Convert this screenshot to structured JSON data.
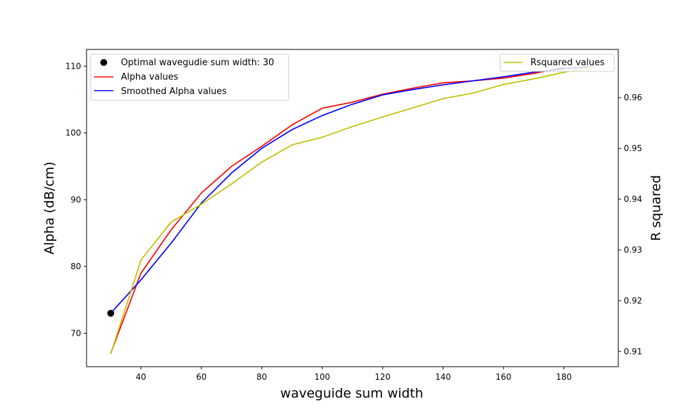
{
  "chart_data": {
    "type": "line",
    "xlabel": "waveguide sum width",
    "ylabel_left": "Alpha (dB/cm)",
    "ylabel_right": "R squared",
    "xlim": [
      22,
      198
    ],
    "ylim_left": [
      65,
      112.5
    ],
    "ylim_right": [
      0.907,
      0.9695
    ],
    "x_ticks": [
      40,
      60,
      80,
      100,
      120,
      140,
      160,
      180
    ],
    "y_left_ticks": [
      70,
      80,
      90,
      100,
      110
    ],
    "y_right_ticks": [
      0.91,
      0.92,
      0.93,
      0.94,
      0.95,
      0.96
    ],
    "y_right_tick_labels": [
      "0.91",
      "0.92",
      "0.93",
      "0.94",
      "0.95",
      "0.96"
    ],
    "grid": false,
    "series": [
      {
        "name": "Alpha values",
        "axis": "left",
        "color": "#ff0000",
        "x": [
          30,
          40,
          50,
          60,
          70,
          80,
          90,
          100,
          110,
          120,
          130,
          140,
          150,
          160,
          170,
          180
        ],
        "values": [
          67,
          79,
          85.5,
          91,
          95,
          98,
          101.2,
          103.7,
          104.6,
          105.8,
          106.7,
          107.5,
          107.8,
          108.2,
          108.9,
          109.8
        ]
      },
      {
        "name": "Smoothed Alpha values",
        "axis": "left",
        "color": "#0000ff",
        "x": [
          30,
          40,
          50,
          60,
          70,
          80,
          90,
          100,
          110,
          120,
          130,
          140,
          150,
          160,
          170,
          180,
          190
        ],
        "values": [
          73,
          78,
          83.5,
          89.5,
          94,
          97.7,
          100.5,
          102.6,
          104.3,
          105.7,
          106.5,
          107.2,
          107.8,
          108.4,
          109.1,
          109.6,
          110
        ]
      },
      {
        "name": "Rsquared values",
        "axis": "right",
        "color": "#bfbf00",
        "x": [
          30,
          40,
          50,
          60,
          70,
          80,
          90,
          100,
          110,
          120,
          130,
          140,
          150,
          160,
          170,
          180,
          190
        ],
        "values": [
          0.9095,
          0.928,
          0.9355,
          0.939,
          0.943,
          0.9473,
          0.9507,
          0.9522,
          0.9543,
          0.9562,
          0.958,
          0.9598,
          0.9609,
          0.9626,
          0.9637,
          0.965,
          0.9662
        ]
      },
      {
        "name": "Optimal wavegudie sum width: 30",
        "axis": "left",
        "kind": "point",
        "color": "#000000",
        "x": [
          30
        ],
        "values": [
          73
        ]
      }
    ],
    "legend_left": {
      "placement": "upper-left",
      "entries": [
        "Optimal wavegudie sum width: 30",
        "Alpha values",
        "Smoothed Alpha values"
      ]
    },
    "legend_right": {
      "placement": "upper-right",
      "entries": [
        "Rsquared values"
      ]
    }
  }
}
